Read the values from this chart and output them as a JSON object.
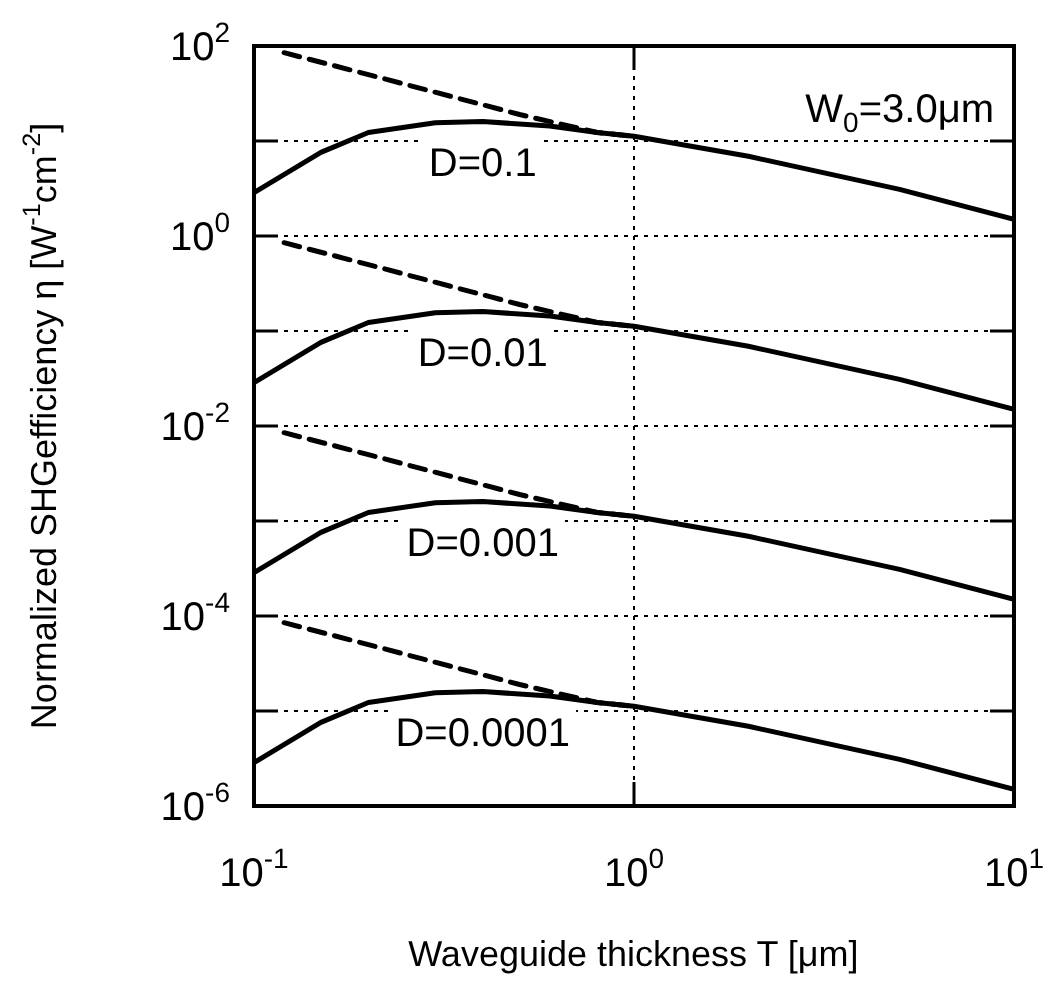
{
  "chart_data": {
    "type": "line",
    "xlabel": "Waveguide thickness T [μm]",
    "ylabel": "Normalized SHGefficiency η [W$^{-1}$cm$^{-2}$]",
    "log": "xy",
    "grid": true,
    "marker": "none",
    "legend": false,
    "xlim": [
      0.1,
      10
    ],
    "ylim": [
      1e-06,
      100
    ],
    "xticks": [
      {
        "value": 0.1,
        "label": "10$^{-1}$"
      },
      {
        "value": 1,
        "label": "10$^{0}$"
      },
      {
        "value": 10,
        "label": "10$^{1}$"
      }
    ],
    "yticks": [
      {
        "value": 1e-06,
        "label": "10$^{-6}$"
      },
      {
        "value": 1e-05,
        "label": null
      },
      {
        "value": 0.0001,
        "label": "10$^{-4}$"
      },
      {
        "value": 0.001,
        "label": null
      },
      {
        "value": 0.01,
        "label": "10$^{-2}$"
      },
      {
        "value": 0.1,
        "label": null
      },
      {
        "value": 1,
        "label": "10$^{0}$"
      },
      {
        "value": 10,
        "label": null
      },
      {
        "value": 100,
        "label": "10$^{2}$"
      }
    ],
    "series": [
      {
        "name": "D=0.1",
        "color": "#000000",
        "line_style": "solid",
        "x": [
          0.1,
          0.15,
          0.2,
          0.3,
          0.4,
          0.6,
          0.8,
          1,
          2,
          5,
          10
        ],
        "values": [
          2.86,
          7.6,
          12.3,
          15.6,
          16,
          14.4,
          12.3,
          11.2,
          6.9,
          3.1,
          1.5
        ]
      },
      {
        "color": "#000000",
        "line_style": "dashed",
        "x": [
          0.12,
          0.2,
          0.5,
          0.8,
          1
        ],
        "values": [
          85,
          50,
          19,
          12.3,
          11.2
        ]
      },
      {
        "name": "D=0.01",
        "color": "#000000",
        "line_style": "solid",
        "x": [
          0.1,
          0.15,
          0.2,
          0.3,
          0.4,
          0.6,
          0.8,
          1,
          2,
          5,
          10
        ],
        "values": [
          0.0286,
          0.076,
          0.123,
          0.156,
          0.16,
          0.144,
          0.123,
          0.112,
          0.069,
          0.031,
          0.015
        ]
      },
      {
        "color": "#000000",
        "line_style": "dashed",
        "x": [
          0.12,
          0.2,
          0.5,
          0.8,
          1
        ],
        "values": [
          0.85,
          0.5,
          0.19,
          0.123,
          0.112
        ]
      },
      {
        "name": "D=0.001",
        "color": "#000000",
        "line_style": "solid",
        "x": [
          0.1,
          0.15,
          0.2,
          0.3,
          0.4,
          0.6,
          0.8,
          1,
          2,
          5,
          10
        ],
        "values": [
          0.000286,
          0.00076,
          0.00123,
          0.00156,
          0.0016,
          0.00144,
          0.00123,
          0.00112,
          0.00069,
          0.00031,
          0.00015
        ]
      },
      {
        "color": "#000000",
        "line_style": "dashed",
        "x": [
          0.12,
          0.2,
          0.5,
          0.8,
          1
        ],
        "values": [
          0.0085,
          0.005,
          0.0019,
          0.00123,
          0.00112
        ]
      },
      {
        "name": "D=0.0001",
        "color": "#000000",
        "line_style": "solid",
        "x": [
          0.1,
          0.15,
          0.2,
          0.3,
          0.4,
          0.6,
          0.8,
          1,
          2,
          5,
          10
        ],
        "values": [
          2.86e-06,
          7.6e-06,
          1.23e-05,
          1.56e-05,
          1.6e-05,
          1.44e-05,
          1.23e-05,
          1.12e-05,
          6.9e-06,
          3.1e-06,
          1.5e-06
        ]
      },
      {
        "color": "#000000",
        "line_style": "dashed",
        "x": [
          0.12,
          0.2,
          0.5,
          0.8,
          1
        ],
        "values": [
          8.5e-05,
          5e-05,
          1.9e-05,
          1.23e-05,
          1.12e-05
        ]
      }
    ],
    "annotations": [
      "W$_{0}$=3.0μm"
    ]
  }
}
